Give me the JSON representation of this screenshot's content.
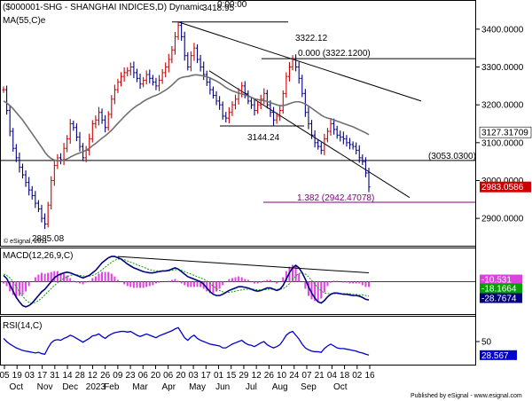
{
  "header": {
    "symbol_title": "($000001-SHG - SHANGHAI INDICES,D) Dynamic",
    "time_overlay": "3418.95",
    "time_overlay2": "0:00:00"
  },
  "ma_label": "MA(55,C)e",
  "watermark": "© eSignal, 2011",
  "footer": "Published by eSignal - www.esignal.com",
  "colors": {
    "up_bar": "#cc0000",
    "down_bar": "#000080",
    "ma_line": "#707070",
    "macd_line": "#000080",
    "signal_line": "#00a000",
    "histogram": "#e040e0",
    "fib_line": "#800080",
    "rsi_line": "#0000cc",
    "price_tag": "#cc0000",
    "value_tag": "#000000"
  },
  "chart_data": [
    {
      "type": "line",
      "name": "price-panel",
      "title": "($000001-SHG - SHANGHAI INDICES,D) Dynamic",
      "ylim": [
        2830,
        3470
      ],
      "yticks": [
        "3400.0000",
        "3300.0000",
        "3200.0000",
        "3100.0000",
        "3000.0000",
        "2900.0000"
      ],
      "ytick_values": [
        3400,
        3300,
        3200,
        3100,
        3000,
        2900
      ],
      "series": [
        {
          "name": "close",
          "values": [
            3240,
            3185,
            3130,
            3085,
            3060,
            3035,
            3015,
            2995,
            2975,
            2960,
            2940,
            2925,
            2900,
            2885,
            2935,
            3000,
            3040,
            3060,
            3055,
            3085,
            3110,
            3150,
            3140,
            3115,
            3090,
            3060,
            3080,
            3110,
            3150,
            3160,
            3180,
            3160,
            3140,
            3175,
            3215,
            3240,
            3260,
            3275,
            3285,
            3290,
            3300,
            3285,
            3270,
            3255,
            3265,
            3280,
            3270,
            3260,
            3250,
            3265,
            3285,
            3300,
            3320,
            3345,
            3380,
            3410,
            3380,
            3330,
            3300,
            3330,
            3350,
            3320,
            3300,
            3280,
            3260,
            3240,
            3225,
            3210,
            3200,
            3170,
            3165,
            3180,
            3200,
            3215,
            3230,
            3250,
            3230,
            3210,
            3200,
            3185,
            3200,
            3215,
            3230,
            3200,
            3180,
            3160,
            3170,
            3185,
            3230,
            3275,
            3300,
            3322,
            3300,
            3270,
            3230,
            3180,
            3150,
            3120,
            3100,
            3090,
            3080,
            3110,
            3130,
            3150,
            3135,
            3120,
            3115,
            3110,
            3100,
            3095,
            3090,
            3080,
            3060,
            3050,
            3020,
            2983
          ]
        },
        {
          "name": "MA(55,C)e",
          "values": [
            3210,
            3205,
            3198,
            3190,
            3180,
            3170,
            3160,
            3148,
            3136,
            3124,
            3112,
            3100,
            3088,
            3075,
            3065,
            3058,
            3054,
            3052,
            3052,
            3054,
            3057,
            3062,
            3066,
            3070,
            3073,
            3076,
            3080,
            3085,
            3092,
            3098,
            3105,
            3112,
            3118,
            3125,
            3133,
            3142,
            3151,
            3160,
            3169,
            3177,
            3185,
            3192,
            3198,
            3203,
            3209,
            3214,
            3218,
            3222,
            3225,
            3229,
            3234,
            3239,
            3245,
            3252,
            3260,
            3268,
            3272,
            3274,
            3275,
            3277,
            3279,
            3279,
            3278,
            3276,
            3274,
            3271,
            3267,
            3263,
            3258,
            3252,
            3246,
            3241,
            3237,
            3234,
            3231,
            3229,
            3226,
            3223,
            3220,
            3216,
            3214,
            3212,
            3211,
            3209,
            3206,
            3203,
            3200,
            3198,
            3198,
            3200,
            3203,
            3206,
            3208,
            3208,
            3206,
            3202,
            3197,
            3191,
            3185,
            3179,
            3173,
            3168,
            3165,
            3163,
            3160,
            3157,
            3154,
            3151,
            3148,
            3145,
            3142,
            3138,
            3134,
            3130,
            3126,
            3121
          ]
        }
      ],
      "annotations": [
        {
          "label": "3418.95",
          "value": 3418.95
        },
        {
          "label": "3322.12",
          "value": 3322.12
        },
        {
          "label": "0.000 (3322.1200)",
          "value": 3322.12
        },
        {
          "label": "3144.24",
          "value": 3144.24
        },
        {
          "label": "(3053.0300)",
          "value": 3053.03
        },
        {
          "label": "1.382 (2942.47078)",
          "value": 2942.47078
        },
        {
          "label": "2885.08",
          "value": 2885.08
        }
      ],
      "price_tags": [
        {
          "label": "3127.31709",
          "value": 3127.31709
        },
        {
          "label": "2983.0586",
          "value": 2983.0586
        }
      ]
    },
    {
      "type": "line",
      "name": "macd-panel",
      "title": "MACD(12,26,9,C)",
      "tags": [
        "-10.531",
        "-18.1664",
        "-28.7674"
      ],
      "ylim": [
        -50,
        50
      ],
      "series": [
        {
          "name": "MACD",
          "values": [
            10,
            5,
            -5,
            -15,
            -25,
            -32,
            -38,
            -40,
            -38,
            -34,
            -28,
            -22,
            -16,
            -12,
            -6,
            0,
            6,
            10,
            12,
            14,
            15,
            14,
            12,
            10,
            8,
            6,
            8,
            10,
            14,
            18,
            24,
            30,
            34,
            38,
            40,
            40,
            38,
            36,
            32,
            28,
            25,
            22,
            20,
            18,
            16,
            15,
            14,
            14,
            15,
            16,
            17,
            17,
            18,
            20,
            22,
            20,
            16,
            12,
            8,
            6,
            4,
            2,
            0,
            -4,
            -10,
            -16,
            -20,
            -22,
            -22,
            -20,
            -17,
            -14,
            -12,
            -10,
            -8,
            -8,
            -9,
            -10,
            -12,
            -14,
            -15,
            -14,
            -12,
            -10,
            -10,
            -12,
            -14,
            -12,
            -6,
            4,
            14,
            22,
            26,
            22,
            14,
            4,
            -8,
            -18,
            -26,
            -32,
            -34,
            -30,
            -24,
            -20,
            -18,
            -18,
            -19,
            -20,
            -20,
            -21,
            -22,
            -22,
            -23,
            -25,
            -28,
            -29
          ]
        },
        {
          "name": "Signal",
          "values": [
            12,
            10,
            6,
            0,
            -8,
            -16,
            -23,
            -29,
            -33,
            -34,
            -33,
            -30,
            -26,
            -21,
            -16,
            -11,
            -6,
            -2,
            2,
            5,
            8,
            10,
            11,
            11,
            10,
            9,
            9,
            9,
            10,
            12,
            15,
            19,
            23,
            27,
            31,
            34,
            36,
            36,
            35,
            33,
            31,
            29,
            27,
            25,
            23,
            21,
            19,
            18,
            17,
            17,
            17,
            17,
            17,
            18,
            19,
            19,
            18,
            16,
            14,
            12,
            10,
            8,
            6,
            4,
            1,
            -3,
            -7,
            -11,
            -14,
            -16,
            -17,
            -17,
            -16,
            -15,
            -14,
            -13,
            -12,
            -12,
            -12,
            -12,
            -13,
            -13,
            -13,
            -12,
            -12,
            -12,
            -12,
            -12,
            -11,
            -8,
            -3,
            3,
            9,
            13,
            14,
            12,
            8,
            2,
            -4,
            -10,
            -15,
            -18,
            -19,
            -19,
            -19,
            -19,
            -19,
            -19,
            -19,
            -19,
            -20,
            -20,
            -21,
            -21,
            -22,
            -23
          ]
        }
      ]
    },
    {
      "type": "line",
      "name": "rsi-panel",
      "title": "RSI(14,C)",
      "yticks": [
        "50"
      ],
      "tags": [
        "28.567"
      ],
      "ylim": [
        15,
        85
      ],
      "series": [
        {
          "name": "RSI",
          "values": [
            55,
            50,
            46,
            43,
            40,
            38,
            36,
            35,
            34,
            33,
            32,
            33,
            31,
            30,
            40,
            48,
            52,
            53,
            52,
            55,
            57,
            60,
            58,
            55,
            52,
            49,
            52,
            55,
            59,
            60,
            62,
            58,
            55,
            59,
            62,
            64,
            65,
            66,
            66,
            65,
            66,
            63,
            60,
            58,
            60,
            62,
            60,
            58,
            56,
            59,
            61,
            63,
            65,
            67,
            70,
            72,
            64,
            56,
            52,
            57,
            60,
            55,
            52,
            50,
            48,
            46,
            45,
            44,
            43,
            40,
            40,
            43,
            46,
            48,
            50,
            52,
            48,
            45,
            44,
            42,
            45,
            48,
            50,
            45,
            42,
            40,
            42,
            45,
            52,
            60,
            64,
            66,
            60,
            54,
            46,
            40,
            37,
            35,
            34,
            34,
            33,
            39,
            43,
            46,
            43,
            40,
            39,
            39,
            38,
            37,
            36,
            35,
            33,
            32,
            30,
            28.567
          ]
        }
      ]
    }
  ],
  "x_axis": {
    "day_ticks": [
      "05",
      "19",
      "03",
      "17",
      "31",
      "14",
      "28",
      "12",
      "26",
      "09",
      "23",
      "06",
      "20",
      "06",
      "20",
      "03",
      "17",
      "01",
      "15",
      "29",
      "12",
      "26",
      "10",
      "24",
      "07",
      "21",
      "04",
      "18",
      "02",
      "16"
    ],
    "month_labels": [
      "Oct",
      "Nov",
      "Dec",
      "2023",
      "Feb",
      "Mar",
      "Apr",
      "May",
      "Jun",
      "Jul",
      "Aug",
      "Sep",
      "Oct"
    ],
    "month_tick_index": [
      4,
      13,
      21,
      29,
      34,
      43,
      52,
      61,
      69,
      78,
      87,
      96,
      106
    ]
  }
}
